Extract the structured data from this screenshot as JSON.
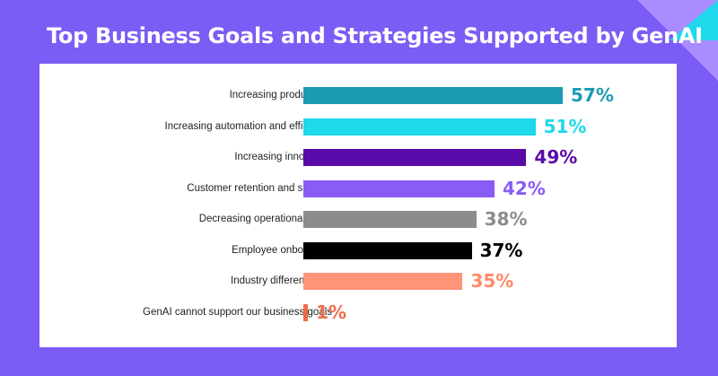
{
  "chart_data": {
    "type": "bar",
    "orientation": "horizontal",
    "title": "Top Business Goals and Strategies Supported by GenAI",
    "categories": [
      "Increasing productivity",
      "Increasing automation and efficiency",
      "Increasing innovation",
      "Customer retention and support",
      "Decreasing operational costs",
      "Employee onboarding",
      "Industry differentiation",
      "GenAI cannot support our business goals"
    ],
    "values": [
      57,
      51,
      49,
      42,
      38,
      37,
      35,
      1
    ],
    "value_labels": [
      "57%",
      "51%",
      "49%",
      "42%",
      "38%",
      "37%",
      "35%",
      "1%"
    ],
    "colors": [
      "#1a9bb4",
      "#1ed8ec",
      "#5a0aa8",
      "#8a5cf6",
      "#8c8c8c",
      "#000000",
      "#ff9478",
      "#f06a4a"
    ],
    "label_colors": [
      "#1a9bb4",
      "#1ed8ec",
      "#5a0aa8",
      "#8a5cf6",
      "#8c8c8c",
      "#000000",
      "#ff8a6a",
      "#f06a4a"
    ],
    "xlim": [
      0,
      100
    ],
    "xlabel": "",
    "ylabel": "",
    "grid": false,
    "legend": "none"
  },
  "colors": {
    "background": "#7b5cf5",
    "panel": "#ffffff",
    "corner_light": "#a98cff",
    "corner_accent": "#1ed8ec"
  }
}
